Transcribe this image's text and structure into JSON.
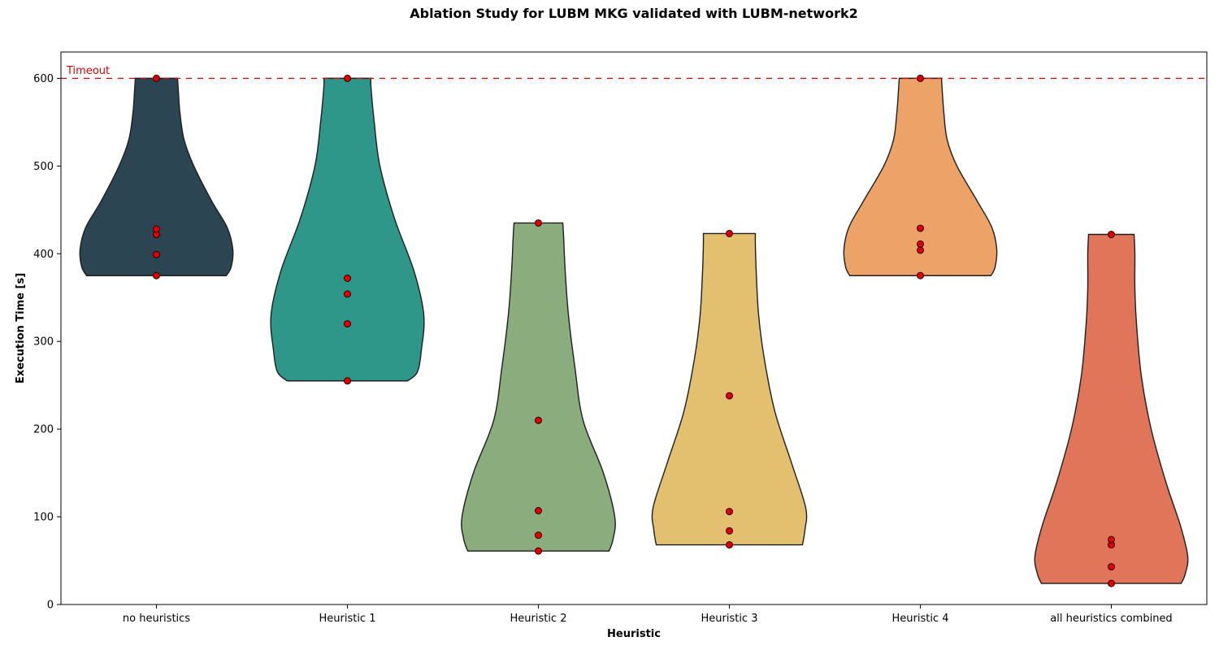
{
  "chart_data": {
    "type": "violin",
    "title": "Ablation Study for LUBM MKG validated with LUBM-network2",
    "xlabel": "Heuristic",
    "ylabel": "Execution Time [s]",
    "ylim": [
      0,
      630
    ],
    "yticks": [
      0,
      100,
      200,
      300,
      400,
      500,
      600
    ],
    "grid": false,
    "timeout": {
      "value": 600,
      "label": "Timeout",
      "color": "#e00000"
    },
    "point_color": "#e00000",
    "categories": [
      "no heuristics",
      "Heuristic 1",
      "Heuristic 2",
      "Heuristic 3",
      "Heuristic 4",
      "all heuristics combined"
    ],
    "series": [
      {
        "category": "no heuristics",
        "color": "#2b4652",
        "points": [
          375,
          399,
          422,
          428,
          600
        ],
        "profile": [
          [
            375,
            86
          ],
          [
            385,
            92
          ],
          [
            405,
            94
          ],
          [
            430,
            87
          ],
          [
            460,
            68
          ],
          [
            500,
            46
          ],
          [
            530,
            34
          ],
          [
            560,
            29
          ],
          [
            585,
            27
          ],
          [
            600,
            26
          ]
        ]
      },
      {
        "category": "Heuristic 1",
        "color": "#2f9789",
        "points": [
          255,
          320,
          354,
          372,
          600
        ],
        "profile": [
          [
            255,
            74
          ],
          [
            265,
            86
          ],
          [
            290,
            91
          ],
          [
            330,
            94
          ],
          [
            380,
            82
          ],
          [
            440,
            58
          ],
          [
            500,
            40
          ],
          [
            550,
            33
          ],
          [
            590,
            29
          ],
          [
            600,
            29
          ]
        ]
      },
      {
        "category": "Heuristic 2",
        "color": "#8bad7e",
        "points": [
          61,
          79,
          107,
          210,
          435
        ],
        "profile": [
          [
            61,
            87
          ],
          [
            75,
            92
          ],
          [
            100,
            94
          ],
          [
            150,
            80
          ],
          [
            210,
            55
          ],
          [
            270,
            45
          ],
          [
            330,
            37
          ],
          [
            380,
            33
          ],
          [
            420,
            31
          ],
          [
            435,
            30
          ]
        ]
      },
      {
        "category": "Heuristic 3",
        "color": "#e3c070",
        "points": [
          68,
          84,
          106,
          238,
          423
        ],
        "profile": [
          [
            68,
            90
          ],
          [
            85,
            93
          ],
          [
            110,
            94
          ],
          [
            160,
            77
          ],
          [
            220,
            56
          ],
          [
            280,
            43
          ],
          [
            330,
            36
          ],
          [
            380,
            33
          ],
          [
            410,
            32
          ],
          [
            423,
            32
          ]
        ]
      },
      {
        "category": "Heuristic 4",
        "color": "#eda267",
        "points": [
          375,
          404,
          411,
          429,
          600
        ],
        "profile": [
          [
            375,
            87
          ],
          [
            385,
            92
          ],
          [
            405,
            94
          ],
          [
            430,
            88
          ],
          [
            460,
            70
          ],
          [
            500,
            45
          ],
          [
            530,
            33
          ],
          [
            560,
            29
          ],
          [
            585,
            27
          ],
          [
            600,
            26
          ]
        ]
      },
      {
        "category": "all heuristics combined",
        "color": "#e0755a",
        "points": [
          24,
          43,
          68,
          74,
          422
        ],
        "profile": [
          [
            24,
            86
          ],
          [
            35,
            91
          ],
          [
            55,
            94
          ],
          [
            90,
            85
          ],
          [
            140,
            67
          ],
          [
            200,
            49
          ],
          [
            260,
            37
          ],
          [
            320,
            31
          ],
          [
            360,
            29
          ],
          [
            400,
            29
          ],
          [
            422,
            28
          ]
        ]
      }
    ]
  }
}
